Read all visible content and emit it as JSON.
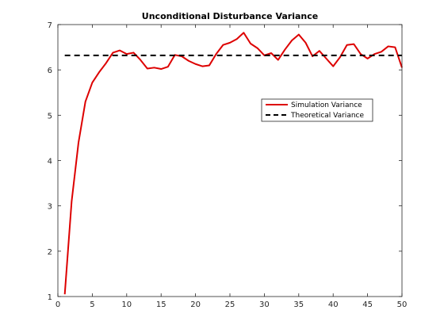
{
  "chart_data": {
    "type": "line",
    "title": "Unconditional Disturbance Variance",
    "xlabel": "",
    "ylabel": "",
    "xlim": [
      0,
      50
    ],
    "ylim": [
      1,
      7
    ],
    "xticks": [
      0,
      5,
      10,
      15,
      20,
      25,
      30,
      35,
      40,
      45,
      50
    ],
    "yticks": [
      1,
      2,
      3,
      4,
      5,
      6,
      7
    ],
    "grid": false,
    "legend_position": "right",
    "series": [
      {
        "name": "Simulation Variance",
        "color": "#dd0000",
        "style": "solid",
        "x": [
          1,
          2,
          3,
          4,
          5,
          6,
          7,
          8,
          9,
          10,
          11,
          12,
          13,
          14,
          15,
          16,
          17,
          18,
          19,
          20,
          21,
          22,
          23,
          24,
          25,
          26,
          27,
          28,
          29,
          30,
          31,
          32,
          33,
          34,
          35,
          36,
          37,
          38,
          39,
          40,
          41,
          42,
          43,
          44,
          45,
          46,
          47,
          48,
          49,
          50
        ],
        "y": [
          1.05,
          3.1,
          4.4,
          5.3,
          5.72,
          5.95,
          6.15,
          6.38,
          6.43,
          6.35,
          6.38,
          6.22,
          6.03,
          6.05,
          6.02,
          6.07,
          6.33,
          6.3,
          6.2,
          6.13,
          6.08,
          6.1,
          6.35,
          6.55,
          6.6,
          6.68,
          6.82,
          6.58,
          6.48,
          6.32,
          6.37,
          6.22,
          6.45,
          6.65,
          6.78,
          6.6,
          6.3,
          6.42,
          6.25,
          6.08,
          6.28,
          6.55,
          6.57,
          6.35,
          6.25,
          6.35,
          6.4,
          6.52,
          6.5,
          6.05
        ]
      },
      {
        "name": "Theoretical Variance",
        "color": "#000000",
        "style": "dashed",
        "x": [
          1,
          50
        ],
        "y": [
          6.32,
          6.32
        ]
      }
    ]
  }
}
